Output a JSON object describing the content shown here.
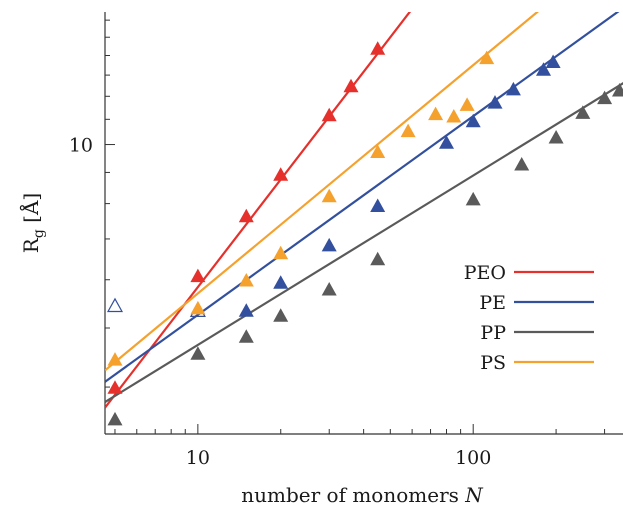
{
  "chart_data": {
    "type": "scatter",
    "xscale": "log",
    "yscale": "log",
    "xlim": [
      4.6,
      350
    ],
    "ylim": [
      3.35,
      16.5
    ],
    "xlabel": "number of monomers",
    "xlabel_var": "N",
    "ylabel": "R",
    "ylabel_sub": "g",
    "ylabel_unit": "[Å]",
    "xticks": [
      {
        "value": 10,
        "label": "10"
      },
      {
        "value": 100,
        "label": "100"
      }
    ],
    "yticks": [
      {
        "value": 10,
        "label": "10"
      }
    ],
    "legend_position": "right",
    "grid": false,
    "series": [
      {
        "name": "PEO",
        "color": "#e5302b",
        "points": [
          [
            5,
            4.0
          ],
          [
            10,
            6.1
          ],
          [
            15,
            7.65
          ],
          [
            20,
            8.95
          ],
          [
            30,
            11.2
          ],
          [
            36,
            12.5
          ],
          [
            45,
            14.4
          ]
        ],
        "fit": [
          [
            4.6,
            3.7
          ],
          [
            65,
            17.5
          ]
        ],
        "open_points": []
      },
      {
        "name": "PE",
        "color": "#33509e",
        "points": [
          [
            15,
            5.35
          ],
          [
            20,
            5.95
          ],
          [
            30,
            6.85
          ],
          [
            45,
            7.95
          ],
          [
            80,
            10.1
          ],
          [
            100,
            10.95
          ],
          [
            120,
            11.75
          ],
          [
            140,
            12.35
          ],
          [
            180,
            13.3
          ],
          [
            195,
            13.7
          ]
        ],
        "fit": [
          [
            4.6,
            4.08
          ],
          [
            360,
            16.9
          ]
        ],
        "open_points": [
          [
            5,
            5.45
          ],
          [
            10,
            5.35
          ]
        ]
      },
      {
        "name": "PP",
        "color": "#5a5a5a",
        "points": [
          [
            5,
            3.55
          ],
          [
            10,
            4.55
          ],
          [
            15,
            4.85
          ],
          [
            20,
            5.25
          ],
          [
            30,
            5.8
          ],
          [
            45,
            6.5
          ],
          [
            100,
            8.15
          ],
          [
            150,
            9.3
          ],
          [
            200,
            10.3
          ],
          [
            250,
            11.3
          ],
          [
            300,
            11.95
          ],
          [
            340,
            12.3
          ]
        ],
        "fit": [
          [
            4.6,
            3.78
          ],
          [
            360,
            12.7
          ]
        ],
        "open_points": []
      },
      {
        "name": "PS",
        "color": "#f5a12e",
        "points": [
          [
            5,
            4.45
          ],
          [
            10,
            5.4
          ],
          [
            15,
            6.0
          ],
          [
            20,
            6.65
          ],
          [
            30,
            8.25
          ],
          [
            45,
            9.75
          ],
          [
            58,
            10.55
          ],
          [
            73,
            11.25
          ],
          [
            85,
            11.15
          ],
          [
            95,
            11.65
          ],
          [
            112,
            13.9
          ]
        ],
        "fit": [
          [
            4.6,
            4.26
          ],
          [
            200,
            17.5
          ]
        ],
        "open_points": []
      }
    ]
  }
}
